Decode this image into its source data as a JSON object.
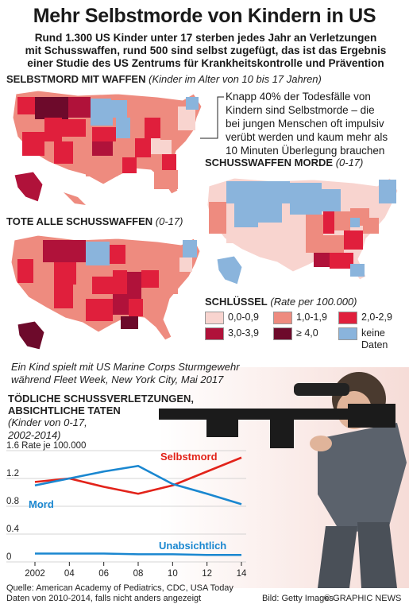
{
  "header": {
    "title": "Mehr Selbstmorde von Kindern in US",
    "intro_lines": [
      "Rund 1.300 US Kinder unter 17 sterben jedes Jahr an Verletzungen",
      "mit Schusswaffen, rund 500 sind selbst zugefügt, das ist das Ergebnis",
      "einer Studie des US Zentrums für Krankheitskontrolle und Prävention"
    ]
  },
  "maps": {
    "suicide": {
      "title": "Selbstmord mit Waffen",
      "subtitle": "(Kinder im Alter von 10 bis 17 Jahren)"
    },
    "homicide": {
      "title": "Schusswaffen Morde",
      "subtitle": "(0-17)"
    },
    "total": {
      "title": "Tote alle Schusswaffen",
      "subtitle": "(0-17)"
    }
  },
  "callout_lines": [
    "Knapp 40% der Todesfälle von",
    "Kindern sind Selbstmorde – die",
    "bei jungen Menschen oft impulsiv",
    "verübt werden und kaum mehr als",
    "10 Minuten Überlegung brauchen"
  ],
  "legend": {
    "title": "Schlüssel",
    "unit": "(Rate per 100.000)",
    "items": [
      {
        "label": "0,0-0,9",
        "color": "#f8d4cf"
      },
      {
        "label": "1,0-1,9",
        "color": "#ee8b7f"
      },
      {
        "label": "2,0-2,9",
        "color": "#e01f3c"
      },
      {
        "label": "3,0-3,9",
        "color": "#b0123a"
      },
      {
        "label": "≥ 4,0",
        "color": "#6d0a2b"
      },
      {
        "label": "keine Daten",
        "color": "#8ab4dc"
      }
    ]
  },
  "photo": {
    "caption_lines": [
      "Ein Kind spielt mit US Marine Corps Sturmgewehr",
      "während Fleet Week, New York City, Mai 2017"
    ]
  },
  "chart": {
    "title_lines": [
      "Tödliche Schussverletzungen,",
      "absichtliche taten"
    ],
    "subtitle_lines": [
      "(Kinder von 0-17,",
      "2002-2014)"
    ]
  },
  "chart_data": {
    "type": "line",
    "x": [
      2002,
      2004,
      2006,
      2008,
      2010,
      2012,
      2014
    ],
    "x_tick_labels": [
      "2002",
      "04",
      "06",
      "08",
      "10",
      "12",
      "14"
    ],
    "y_tick_labels": [
      "1.6 Rate je 100.000",
      "1.2",
      "0.8",
      "0.4",
      "0"
    ],
    "y_ticks": [
      1.6,
      1.2,
      0.8,
      0.4,
      0
    ],
    "ylim": [
      0,
      1.6
    ],
    "series": [
      {
        "name": "Selbstmord",
        "color": "#e2231a",
        "values": [
          1.15,
          1.2,
          1.08,
          0.98,
          1.1,
          1.3,
          1.5
        ]
      },
      {
        "name": "Mord",
        "color": "#1a87d0",
        "values": [
          1.1,
          1.2,
          1.3,
          1.38,
          1.12,
          0.98,
          0.83
        ]
      },
      {
        "name": "Unabsichtlich",
        "color": "#1a87d0",
        "values": [
          0.12,
          0.12,
          0.12,
          0.11,
          0.11,
          0.1,
          0.1
        ]
      }
    ]
  },
  "footer": {
    "source": "Quelle: American Academy of Pediatrics, CDC, USA Today",
    "note": "Daten von 2010-2014, falls nicht anders angezeigt",
    "credit": "Bild: Getty Images",
    "brand": "© GRAPHIC NEWS"
  }
}
